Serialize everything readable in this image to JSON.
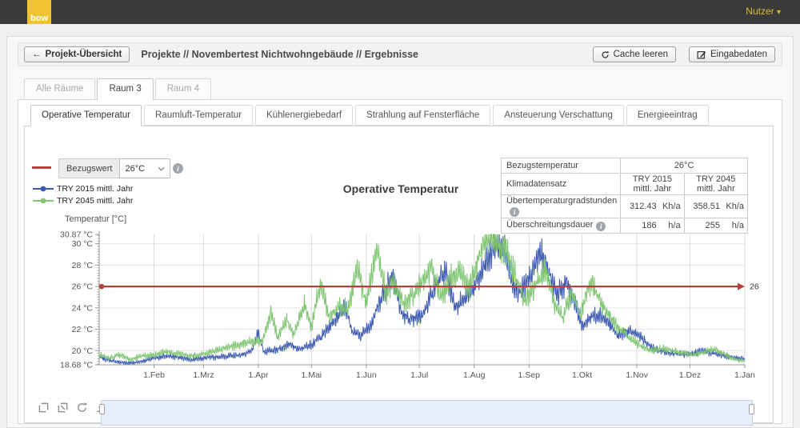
{
  "header": {
    "logo_text": "bow",
    "user_menu": "Nutzer"
  },
  "breadcrumb": {
    "back_button": "Projekt-Übersicht",
    "path": "Projekte // Novembertest Nichtwohngebäude // Ergebnisse",
    "cache_button": "Cache leeren",
    "input_button": "Eingabedaten"
  },
  "room_tabs": [
    {
      "label": "Alle Räume",
      "active": false
    },
    {
      "label": "Raum 3",
      "active": true
    },
    {
      "label": "Raum 4",
      "active": false
    }
  ],
  "result_tabs": [
    {
      "label": "Operative Temperatur",
      "active": true
    },
    {
      "label": "Raumluft-Temperatur",
      "active": false
    },
    {
      "label": "Kühlenergiebedarf",
      "active": false
    },
    {
      "label": "Strahlung auf Fensterfläche",
      "active": false
    },
    {
      "label": "Ansteuerung Verschattung",
      "active": false
    },
    {
      "label": "Energieeintrag",
      "active": false
    }
  ],
  "controls": {
    "reference_label": "Bezugswert",
    "reference_value": "26°C"
  },
  "summary_table": {
    "rows": [
      {
        "label": "Bezugstemperatur",
        "merged_value": "26°C"
      },
      {
        "label": "Klimadatensatz",
        "col1": "TRY 2015 mittl. Jahr",
        "col2": "TRY 2045 mittl. Jahr"
      },
      {
        "label": "Übertemperaturgradstunden",
        "val1": "312.43",
        "unit1": "Kh/a",
        "val2": "358.51",
        "unit2": "Kh/a"
      },
      {
        "label": "Überschreitungsdauer",
        "val1": "186",
        "unit1": "h/a",
        "val2": "255",
        "unit2": "h/a"
      }
    ]
  },
  "chart_data": {
    "type": "line",
    "title": "Operative Temperatur",
    "ylabel": "Temperatur [°C]",
    "ylim": [
      18.68,
      30.87
    ],
    "y_major_ticks": [
      20,
      22,
      24,
      26,
      28,
      30
    ],
    "y_tick_labels": [
      {
        "v": 30.87,
        "label": "30.87 °C"
      },
      {
        "v": 30,
        "label": "30 °C"
      },
      {
        "v": 28,
        "label": "28 °C"
      },
      {
        "v": 26,
        "label": "26 °C"
      },
      {
        "v": 24,
        "label": "24 °C"
      },
      {
        "v": 22,
        "label": "22 °C"
      },
      {
        "v": 20,
        "label": "20 °C"
      },
      {
        "v": 18.68,
        "label": "18.68 °C"
      }
    ],
    "x_ticks": [
      {
        "day": 31,
        "label": "1.Feb"
      },
      {
        "day": 59,
        "label": "1.Mrz"
      },
      {
        "day": 90,
        "label": "1.Apr"
      },
      {
        "day": 120,
        "label": "1.Mai"
      },
      {
        "day": 151,
        "label": "1.Jun"
      },
      {
        "day": 181,
        "label": "1.Jul"
      },
      {
        "day": 212,
        "label": "1.Aug"
      },
      {
        "day": 243,
        "label": "1.Sep"
      },
      {
        "day": 273,
        "label": "1.Okt"
      },
      {
        "day": 304,
        "label": "1.Nov"
      },
      {
        "day": 334,
        "label": "1.Dez"
      },
      {
        "day": 365,
        "label": "1.Jan"
      }
    ],
    "reference_line": {
      "value": 26,
      "label": "26",
      "color": "#b2423a"
    },
    "noise": {
      "daily_amplitude_base": 0.25,
      "daily_amplitude_scale": 0.15
    },
    "series": [
      {
        "name": "TRY 2015 mittl. Jahr",
        "color": "#3d5ab2",
        "control_points": [
          [
            0,
            19.4
          ],
          [
            6,
            19.1
          ],
          [
            12,
            18.9
          ],
          [
            18,
            18.85
          ],
          [
            24,
            19.0
          ],
          [
            31,
            19.3
          ],
          [
            38,
            19.5
          ],
          [
            45,
            19.4
          ],
          [
            52,
            19.2
          ],
          [
            59,
            19.3
          ],
          [
            66,
            19.4
          ],
          [
            73,
            19.5
          ],
          [
            80,
            19.6
          ],
          [
            86,
            19.9
          ],
          [
            90,
            21.7
          ],
          [
            93,
            19.9
          ],
          [
            100,
            20.1
          ],
          [
            107,
            20.6
          ],
          [
            113,
            20.1
          ],
          [
            120,
            20.6
          ],
          [
            126,
            21.4
          ],
          [
            132,
            22.6
          ],
          [
            139,
            24.2
          ],
          [
            143,
            21.8
          ],
          [
            148,
            21.4
          ],
          [
            154,
            22.6
          ],
          [
            160,
            25.2
          ],
          [
            166,
            27.2
          ],
          [
            171,
            23.4
          ],
          [
            177,
            22.8
          ],
          [
            183,
            23.4
          ],
          [
            190,
            26.2
          ],
          [
            196,
            27.3
          ],
          [
            201,
            24.2
          ],
          [
            207,
            24.8
          ],
          [
            213,
            26.2
          ],
          [
            219,
            28.2
          ],
          [
            224,
            29.9
          ],
          [
            229,
            29.4
          ],
          [
            234,
            26.4
          ],
          [
            238,
            25.4
          ],
          [
            244,
            26.8
          ],
          [
            249,
            29.2
          ],
          [
            254,
            27.6
          ],
          [
            259,
            25.2
          ],
          [
            264,
            26.4
          ],
          [
            269,
            24.6
          ],
          [
            273,
            22.2
          ],
          [
            278,
            23.2
          ],
          [
            283,
            23.4
          ],
          [
            288,
            22.6
          ],
          [
            293,
            21.4
          ],
          [
            298,
            21.8
          ],
          [
            304,
            21.6
          ],
          [
            310,
            20.6
          ],
          [
            316,
            20.0
          ],
          [
            322,
            19.8
          ],
          [
            328,
            19.7
          ],
          [
            334,
            19.6
          ],
          [
            340,
            20.0
          ],
          [
            346,
            19.8
          ],
          [
            352,
            19.6
          ],
          [
            358,
            19.4
          ],
          [
            365,
            19.2
          ]
        ]
      },
      {
        "name": "TRY 2045 mittl. Jahr",
        "color": "#80c673",
        "control_points": [
          [
            0,
            19.6
          ],
          [
            6,
            19.3
          ],
          [
            12,
            19.6
          ],
          [
            18,
            19.2
          ],
          [
            24,
            19.5
          ],
          [
            31,
            19.6
          ],
          [
            38,
            19.9
          ],
          [
            45,
            19.7
          ],
          [
            52,
            19.5
          ],
          [
            59,
            19.7
          ],
          [
            66,
            20.0
          ],
          [
            73,
            20.3
          ],
          [
            80,
            20.6
          ],
          [
            86,
            20.9
          ],
          [
            92,
            20.8
          ],
          [
            97,
            23.6
          ],
          [
            101,
            21.2
          ],
          [
            106,
            23.0
          ],
          [
            110,
            21.4
          ],
          [
            116,
            24.4
          ],
          [
            120,
            22.2
          ],
          [
            125,
            26.4
          ],
          [
            130,
            23.2
          ],
          [
            136,
            24.2
          ],
          [
            141,
            24.0
          ],
          [
            146,
            27.8
          ],
          [
            151,
            24.4
          ],
          [
            157,
            29.3
          ],
          [
            162,
            25.4
          ],
          [
            167,
            26.2
          ],
          [
            172,
            24.4
          ],
          [
            178,
            25.4
          ],
          [
            183,
            26.6
          ],
          [
            188,
            27.9
          ],
          [
            193,
            24.8
          ],
          [
            199,
            26.8
          ],
          [
            204,
            27.4
          ],
          [
            209,
            25.6
          ],
          [
            214,
            28.4
          ],
          [
            219,
            30.5
          ],
          [
            222,
            30.8
          ],
          [
            227,
            29.8
          ],
          [
            231,
            28.8
          ],
          [
            236,
            26.6
          ],
          [
            241,
            24.8
          ],
          [
            247,
            26.2
          ],
          [
            252,
            27.7
          ],
          [
            257,
            24.6
          ],
          [
            262,
            23.0
          ],
          [
            267,
            25.4
          ],
          [
            272,
            23.4
          ],
          [
            278,
            26.6
          ],
          [
            283,
            24.6
          ],
          [
            288,
            23.4
          ],
          [
            294,
            22.0
          ],
          [
            300,
            21.2
          ],
          [
            306,
            20.4
          ],
          [
            312,
            20.0
          ],
          [
            318,
            20.2
          ],
          [
            324,
            20.0
          ],
          [
            330,
            19.8
          ],
          [
            336,
            19.6
          ],
          [
            342,
            19.9
          ],
          [
            348,
            20.2
          ],
          [
            354,
            19.6
          ],
          [
            360,
            19.2
          ],
          [
            365,
            19.0
          ]
        ]
      }
    ]
  }
}
